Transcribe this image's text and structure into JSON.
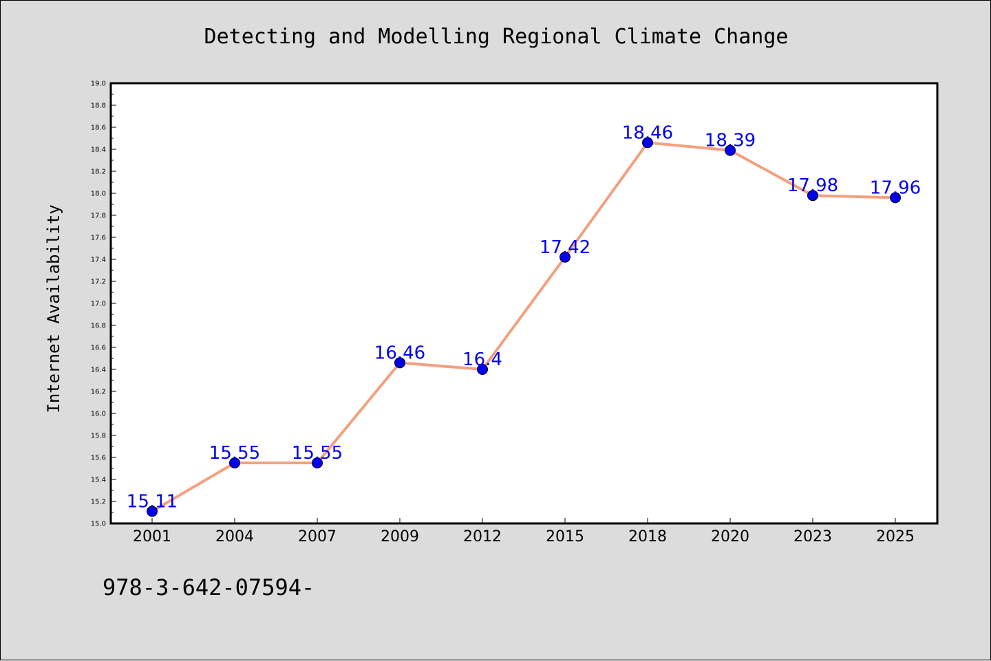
{
  "chart_data": {
    "type": "line",
    "title": "Detecting and Modelling Regional Climate Change",
    "xlabel": "",
    "ylabel": "Internet Availability",
    "categories": [
      "2001",
      "2004",
      "2007",
      "2009",
      "2012",
      "2015",
      "2018",
      "2020",
      "2023",
      "2025"
    ],
    "values": [
      15.11,
      15.55,
      15.55,
      16.46,
      16.4,
      17.42,
      18.46,
      18.39,
      17.98,
      17.96
    ],
    "data_labels": [
      "15.11",
      "15.55",
      "15.55",
      "16.46",
      "16.4",
      "17.42",
      "18.46",
      "18.39",
      "17.98",
      "17.96"
    ],
    "ylim": [
      15.0,
      19.0
    ],
    "yticks": [
      "15.0",
      "15.2",
      "15.4",
      "15.6",
      "15.8",
      "16.0",
      "16.2",
      "16.4",
      "16.6",
      "16.8",
      "17.0",
      "17.2",
      "17.4",
      "17.6",
      "17.8",
      "18.0",
      "18.2",
      "18.4",
      "18.6",
      "18.8",
      "19.0"
    ],
    "grid": false,
    "legend": "none",
    "line_color": "#f4a07e",
    "marker_color": "#0000ee",
    "label_color": "#0000ee",
    "plot_background": "#ffffff",
    "figure_background": "#dcdcdc"
  },
  "footer_text": "978-3-642-07594-"
}
